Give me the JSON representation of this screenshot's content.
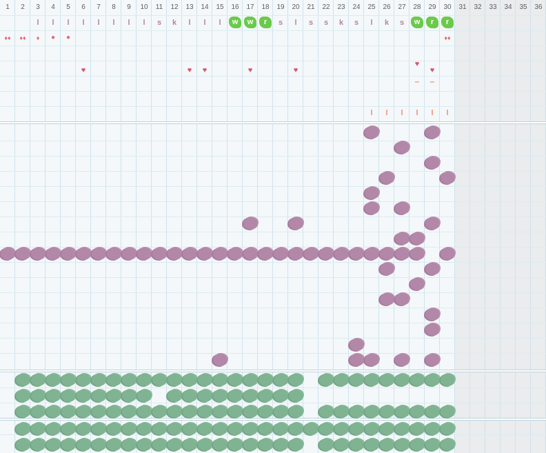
{
  "days": [
    "1",
    "2",
    "3",
    "4",
    "5",
    "6",
    "7",
    "8",
    "9",
    "10",
    "11",
    "12",
    "13",
    "14",
    "15",
    "16",
    "17",
    "18",
    "19",
    "20",
    "21",
    "22",
    "23",
    "24",
    "25",
    "26",
    "27",
    "28",
    "29",
    "30",
    "31",
    "32",
    "33",
    "34",
    "35",
    "36"
  ],
  "codes": [
    {
      "day": 3,
      "t": "l"
    },
    {
      "day": 4,
      "t": "l"
    },
    {
      "day": 5,
      "t": "l"
    },
    {
      "day": 6,
      "t": "l"
    },
    {
      "day": 7,
      "t": "l"
    },
    {
      "day": 8,
      "t": "l"
    },
    {
      "day": 9,
      "t": "l"
    },
    {
      "day": 10,
      "t": "l"
    },
    {
      "day": 11,
      "t": "s"
    },
    {
      "day": 12,
      "t": "k"
    },
    {
      "day": 13,
      "t": "l"
    },
    {
      "day": 14,
      "t": "l"
    },
    {
      "day": 15,
      "t": "l"
    },
    {
      "day": 16,
      "t": "w",
      "green": true
    },
    {
      "day": 17,
      "t": "w",
      "green": true
    },
    {
      "day": 18,
      "t": "r",
      "green": true
    },
    {
      "day": 19,
      "t": "s"
    },
    {
      "day": 20,
      "t": "l"
    },
    {
      "day": 21,
      "t": "s"
    },
    {
      "day": 22,
      "t": "s"
    },
    {
      "day": 23,
      "t": "k"
    },
    {
      "day": 24,
      "t": "s"
    },
    {
      "day": 25,
      "t": "l"
    },
    {
      "day": 26,
      "t": "k"
    },
    {
      "day": 27,
      "t": "s"
    },
    {
      "day": 28,
      "t": "w",
      "green": true
    },
    {
      "day": 29,
      "t": "r",
      "green": true
    },
    {
      "day": 30,
      "t": "r",
      "green": true
    }
  ],
  "flow_marks": [
    {
      "day": 1,
      "glyph": "♦♦"
    },
    {
      "day": 2,
      "glyph": "♦♦"
    },
    {
      "day": 3,
      "glyph": "♦"
    },
    {
      "day": 4,
      "glyph": "●"
    },
    {
      "day": 5,
      "glyph": "●"
    },
    {
      "day": 30,
      "glyph": "♦♦"
    }
  ],
  "hearts": [
    {
      "day": 6,
      "row": 0
    },
    {
      "day": 13,
      "row": 0
    },
    {
      "day": 14,
      "row": 0
    },
    {
      "day": 17,
      "row": 0
    },
    {
      "day": 20,
      "row": 0
    },
    {
      "day": 28,
      "row": -1
    },
    {
      "day": 29,
      "row": 0
    }
  ],
  "dashes": [
    {
      "day": 28
    },
    {
      "day": 29
    }
  ],
  "ticks": [
    {
      "day": 25
    },
    {
      "day": 26
    },
    {
      "day": 27
    },
    {
      "day": 28
    },
    {
      "day": 29
    },
    {
      "day": 30
    }
  ],
  "symptom_rows": [
    [
      25,
      29
    ],
    [
      27
    ],
    [
      29
    ],
    [
      26,
      30
    ],
    [
      25
    ],
    [
      25,
      27
    ],
    [
      17,
      20,
      29
    ],
    [
      27,
      28
    ],
    [
      1,
      2,
      3,
      4,
      5,
      6,
      7,
      8,
      9,
      10,
      11,
      12,
      13,
      14,
      15,
      16,
      17,
      18,
      19,
      20,
      21,
      22,
      23,
      24,
      25,
      26,
      27,
      28,
      30
    ],
    [
      26,
      29
    ],
    [
      28
    ],
    [
      26,
      27
    ],
    [
      29
    ],
    [
      29
    ],
    [
      24
    ],
    [
      15,
      24,
      25,
      27,
      29
    ]
  ],
  "habit_rows_a": [
    [
      2,
      3,
      4,
      5,
      6,
      7,
      8,
      9,
      10,
      11,
      12,
      13,
      14,
      15,
      16,
      17,
      18,
      19,
      20,
      22,
      23,
      24,
      25,
      26,
      27,
      28,
      29,
      30
    ],
    [
      2,
      3,
      4,
      5,
      6,
      7,
      8,
      9,
      10,
      12,
      13,
      14,
      15,
      16,
      17,
      18,
      19,
      20
    ],
    [
      2,
      3,
      4,
      5,
      6,
      7,
      8,
      9,
      10,
      11,
      12,
      13,
      14,
      15,
      16,
      17,
      18,
      19,
      20,
      22,
      23,
      24,
      25,
      26,
      27,
      28,
      29,
      30
    ]
  ],
  "habit_rows_b": [
    [
      2,
      3,
      4,
      5,
      6,
      7,
      8,
      9,
      10,
      11,
      12,
      13,
      14,
      15,
      16,
      17,
      18,
      19,
      20,
      21,
      22,
      23,
      24,
      25,
      26,
      27,
      28,
      29,
      30
    ],
    [
      2,
      3,
      4,
      5,
      6,
      7,
      8,
      9,
      10,
      11,
      12,
      13,
      14,
      15,
      16,
      17,
      18,
      19,
      20,
      22,
      23,
      24,
      25,
      26,
      27,
      28,
      29,
      30
    ]
  ],
  "colors": {
    "symptom": "#b387a8",
    "habit": "#7fb392",
    "code_green": "#6bca4a",
    "heart": "#d9546b",
    "tick": "#f0906e"
  }
}
